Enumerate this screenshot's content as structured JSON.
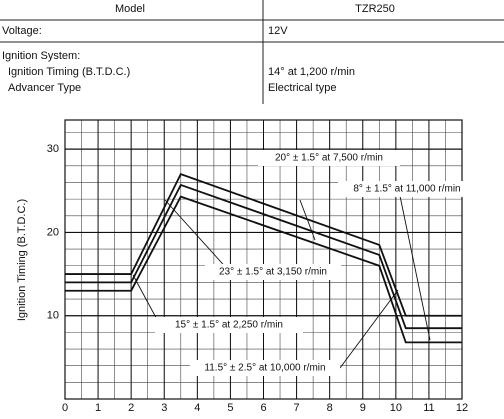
{
  "table": {
    "header": [
      "Model",
      "TZR250"
    ],
    "rows": [
      [
        "Voltage:",
        "12V"
      ],
      [
        "Ignition System:",
        null
      ],
      [
        "Ignition Timing (B.T.D.C.)",
        "14° at 1,200 r/min"
      ],
      [
        "Advancer Type",
        "Electrical type"
      ]
    ]
  },
  "chart_data": {
    "type": "line",
    "y_label": "Ignition Timing (B.T.D.C.)",
    "x": [
      0,
      2,
      3.5,
      9.5,
      10.3,
      12
    ],
    "series": [
      {
        "color": "#111111",
        "values": [
          15,
          15,
          27,
          18.5,
          10,
          10
        ]
      },
      {
        "color": "#111111",
        "values": [
          14,
          14,
          25.7,
          17.3,
          8.5,
          8.5
        ]
      },
      {
        "color": "#111111",
        "values": [
          13,
          13,
          24.3,
          16,
          6.8,
          6.8
        ]
      }
    ],
    "xlim": [
      0,
      12
    ],
    "ylim": [
      0,
      33.5
    ],
    "xticks": [
      0,
      1,
      2,
      3,
      4,
      5,
      6,
      7,
      8,
      9,
      10,
      11,
      12
    ],
    "yticks": [
      10,
      20,
      30
    ],
    "annotations": [
      "20° ± 1.5° at 7,500 r/min",
      "8° ± 1.5° at 11,000 r/min",
      "23° ± 1.5° at 3,150 r/min",
      "15° ± 1.5° at 2,250 r/min",
      "11.5° ± 2.5° at 10,000 r/min"
    ]
  }
}
